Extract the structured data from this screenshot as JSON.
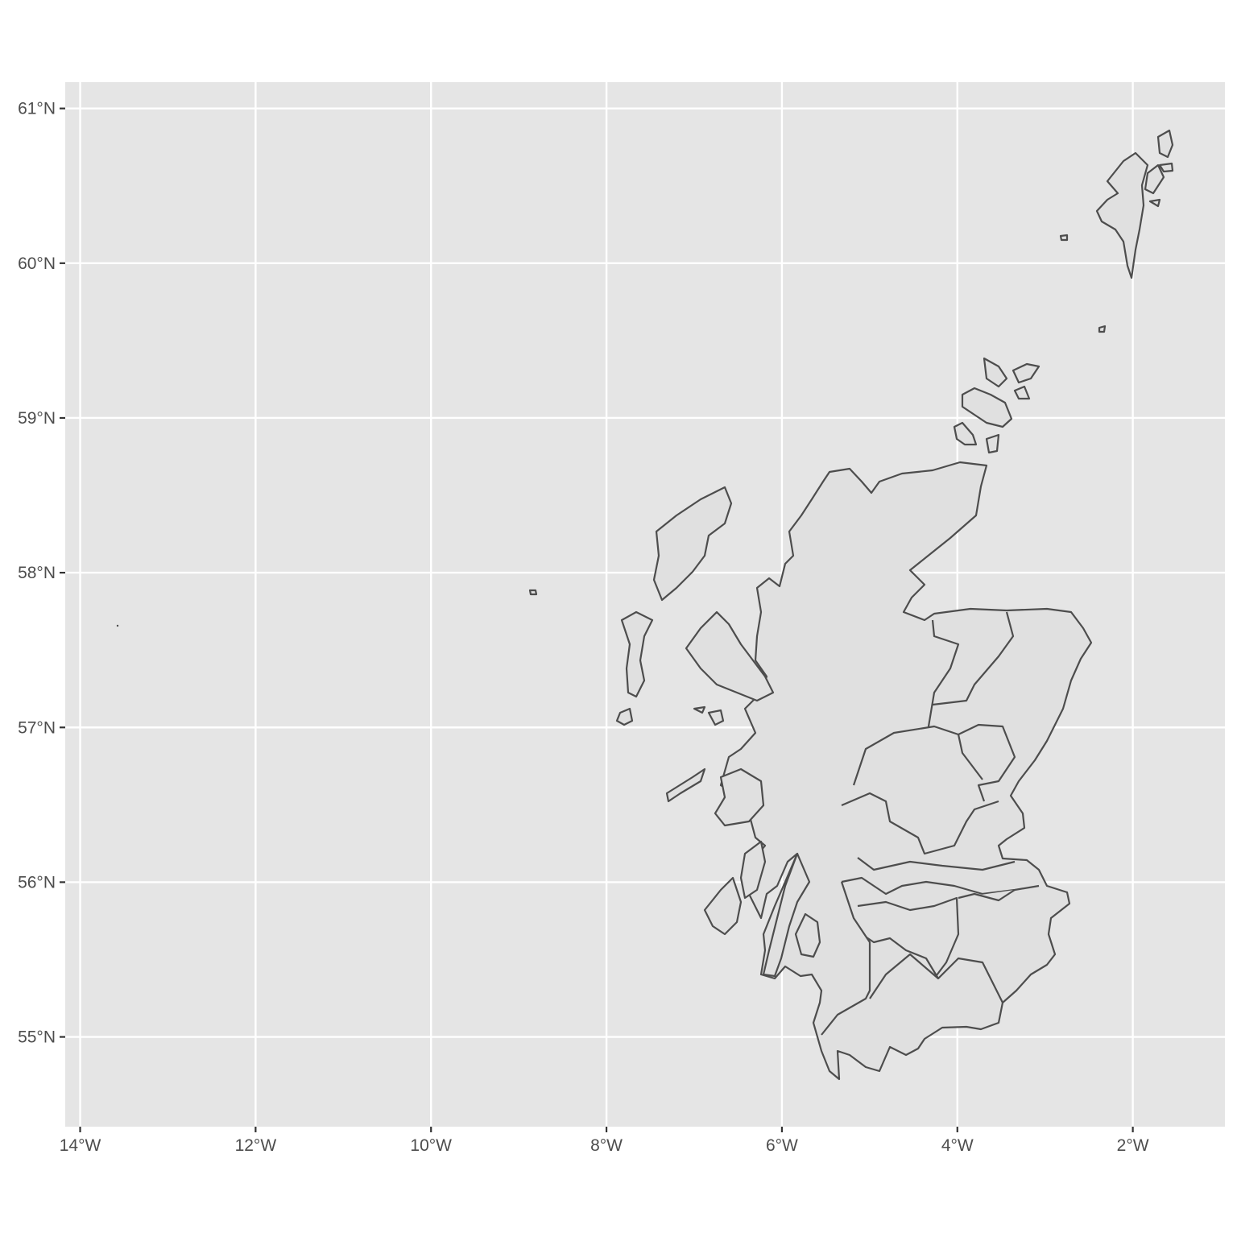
{
  "map": {
    "projection": "longlat",
    "panel_color": "#e5e5e5",
    "grid_color": "#ffffff",
    "land_fill": "#e0e0e0",
    "border_color": "#4d4d4d",
    "xlim": [
      -14.17,
      -0.95
    ],
    "ylim": [
      54.42,
      61.17
    ],
    "x_ticks": [
      {
        "value": -14,
        "label": "14°W"
      },
      {
        "value": -12,
        "label": "12°W"
      },
      {
        "value": -10,
        "label": "10°W"
      },
      {
        "value": -8,
        "label": "8°W"
      },
      {
        "value": -6,
        "label": "6°W"
      },
      {
        "value": -4,
        "label": "4°W"
      },
      {
        "value": -2,
        "label": "2°W"
      }
    ],
    "y_ticks": [
      {
        "value": 61,
        "label": "61°N"
      },
      {
        "value": 60,
        "label": "60°N"
      },
      {
        "value": 59,
        "label": "59°N"
      },
      {
        "value": 58,
        "label": "58°N"
      },
      {
        "value": 57,
        "label": "57°N"
      },
      {
        "value": 56,
        "label": "56°N"
      },
      {
        "value": 55,
        "label": "55°N"
      }
    ]
  }
}
